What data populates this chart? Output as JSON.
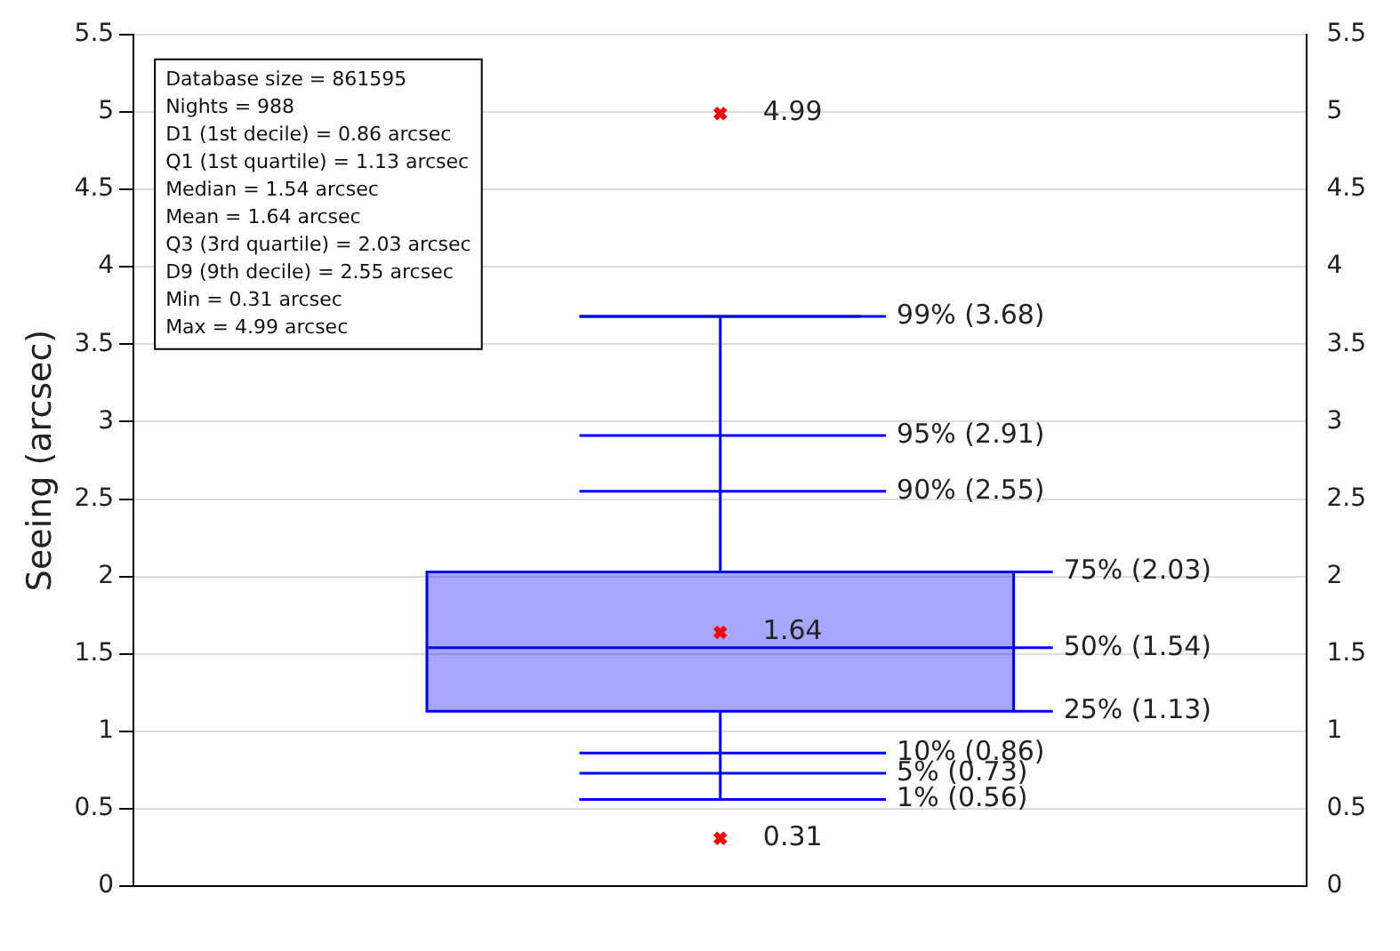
{
  "chart_data": {
    "type": "box",
    "ylabel": "Seeing (arcsec)",
    "categories": [
      null
    ],
    "color": "#0000ff",
    "marker": "cross",
    "boxes": [
      {
        "low": 0.56,
        "q1": 1.13,
        "median": 1.54,
        "q3": 2.03,
        "high": 3.68
      }
    ],
    "series": [
      {
        "type": "scatter",
        "color": "#ff0000",
        "x": [
          null,
          null,
          null
        ],
        "values": [
          4.99,
          1.64,
          0.31
        ],
        "value_labels": [
          "4.99",
          "1.64",
          "0.31"
        ]
      }
    ],
    "ylim": [
      0,
      5.5
    ],
    "yticks": [
      0,
      0.5,
      1,
      1.5,
      2,
      2.5,
      3,
      3.5,
      4,
      4.5,
      5,
      5.5
    ],
    "y2lim": [
      0,
      5.5
    ],
    "y2ticks": [
      0,
      0.5,
      1,
      1.5,
      2,
      2.5,
      3,
      3.5,
      4,
      4.5,
      5,
      5.5
    ],
    "grid": "y",
    "annotations": [
      "Database size = 861595",
      "Nights = 988",
      "D1 (1st decile) = 0.86 arcsec",
      "Q1 (1st quartile) = 1.13 arcsec",
      "Median = 1.54 arcsec",
      "Mean = 1.64 arcsec",
      "Q3 (3rd quartile) = 2.03 arcsec",
      "D9 (9th decile) = 2.55 arcsec",
      "Min = 0.31 arcsec",
      "Max = 4.99 arcsec"
    ],
    "ref_lines": [
      {
        "axis": "y",
        "value": 3.68,
        "label": "99% (3.68)"
      },
      {
        "axis": "y",
        "value": 2.91,
        "label": "95% (2.91)"
      },
      {
        "axis": "y",
        "value": 2.55,
        "label": "90% (2.55)"
      },
      {
        "axis": "y",
        "value": 2.03,
        "label": "75% (2.03)"
      },
      {
        "axis": "y",
        "value": 1.54,
        "label": "50% (1.54)"
      },
      {
        "axis": "y",
        "value": 1.13,
        "label": "25% (1.13)"
      },
      {
        "axis": "y",
        "value": 0.86,
        "label": "10% (0.86)"
      },
      {
        "axis": "y",
        "value": 0.73,
        "label": "5% (0.73)"
      },
      {
        "axis": "y",
        "value": 0.56,
        "label": "1% (0.56)"
      }
    ]
  }
}
